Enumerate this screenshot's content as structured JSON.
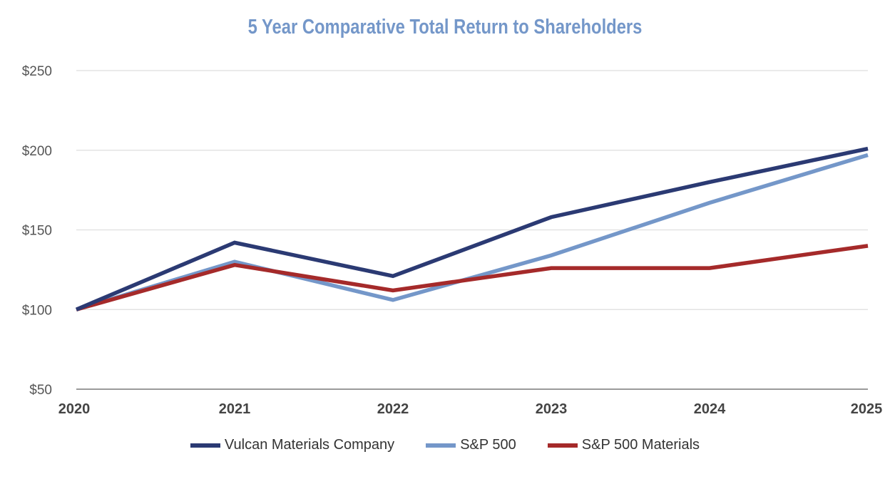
{
  "chart_data": {
    "type": "line",
    "title": "5 Year Comparative Total Return to Shareholders",
    "xlabel": "",
    "ylabel": "",
    "categories": [
      "2020",
      "2021",
      "2022",
      "2023",
      "2024",
      "2025"
    ],
    "ylim": [
      50,
      250
    ],
    "yticks": [
      50,
      100,
      150,
      200,
      250
    ],
    "ytick_labels": [
      "$50",
      "$100",
      "$150",
      "$200",
      "$250"
    ],
    "grid": true,
    "legend_position": "bottom-center",
    "series": [
      {
        "name": "Vulcan Materials Company",
        "color": "#2B3A73",
        "values": [
          100,
          142,
          121,
          158,
          180,
          201
        ]
      },
      {
        "name": "S&P 500",
        "color": "#7497C9",
        "values": [
          100,
          130,
          106,
          134,
          167,
          197
        ]
      },
      {
        "name": "S&P 500 Materials",
        "color": "#A52A2A",
        "values": [
          100,
          128,
          112,
          126,
          126,
          140
        ]
      }
    ],
    "title_color": "#7497C9"
  }
}
